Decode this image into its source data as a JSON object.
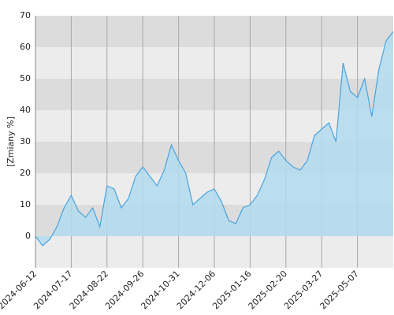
{
  "chart_data": {
    "type": "area",
    "y_label": "[Zmiany %]",
    "x": [
      "2024-06-12",
      "2024-06-19",
      "2024-06-26",
      "2024-07-03",
      "2024-07-10",
      "2024-07-17",
      "2024-07-24",
      "2024-07-31",
      "2024-08-07",
      "2024-08-14",
      "2024-08-22",
      "2024-08-29",
      "2024-09-05",
      "2024-09-12",
      "2024-09-19",
      "2024-09-26",
      "2024-10-03",
      "2024-10-10",
      "2024-10-17",
      "2024-10-24",
      "2024-10-31",
      "2024-11-08",
      "2024-11-15",
      "2024-11-22",
      "2024-11-29",
      "2024-12-06",
      "2024-12-13",
      "2024-12-20",
      "2024-12-30",
      "2025-01-08",
      "2025-01-16",
      "2025-01-23",
      "2025-01-30",
      "2025-02-06",
      "2025-02-13",
      "2025-02-20",
      "2025-02-27",
      "2025-03-06",
      "2025-03-13",
      "2025-03-20",
      "2025-03-27",
      "2025-04-04",
      "2025-04-11",
      "2025-04-22",
      "2025-04-29",
      "2025-05-07",
      "2025-05-14",
      "2025-05-21",
      "2025-05-28",
      "2025-06-04",
      "2025-06-11"
    ],
    "series": [
      {
        "color": "#4aa3df",
        "fill": "#b3dcee",
        "values": [
          0,
          -3,
          -1,
          3,
          9,
          13,
          8,
          6,
          9,
          3,
          16,
          15,
          9,
          12,
          19,
          22,
          19,
          16,
          21,
          29,
          24,
          20,
          10,
          12,
          14,
          15,
          11,
          5,
          4,
          9,
          10,
          13,
          18,
          25,
          27,
          24,
          22,
          21,
          24,
          32,
          34,
          36,
          30,
          55,
          46,
          44,
          50,
          38,
          53,
          62,
          65
        ]
      }
    ],
    "xticks": [
      "2024-06-12",
      "2024-07-17",
      "2024-08-22",
      "2024-09-26",
      "2024-10-31",
      "2024-12-06",
      "2025-01-16",
      "2025-02-20",
      "2025-03-27",
      "2025-05-07"
    ],
    "ylim": [
      -10,
      70
    ],
    "yticks": [
      0,
      10,
      20,
      30,
      40,
      50,
      60,
      70
    ],
    "grid": true
  }
}
